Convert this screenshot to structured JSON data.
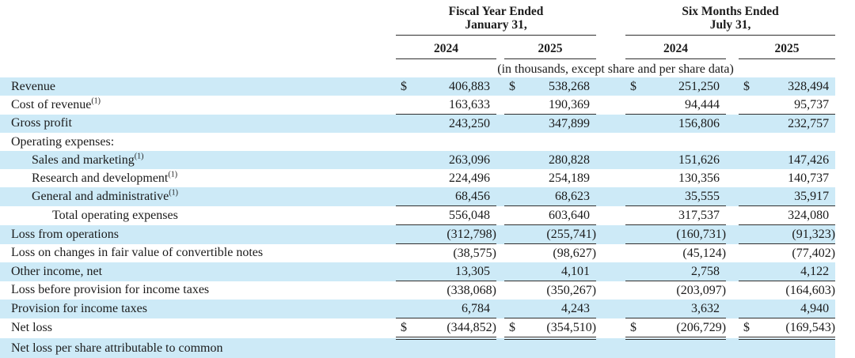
{
  "colors": {
    "stripe": "#cdeaf7",
    "text": "#1b1b1b",
    "rule": "#2f2f2f"
  },
  "currency_symbol": "$",
  "table": {
    "unit_note": "(in thousands, except share and per share data)",
    "column_groups": [
      {
        "line1": "Fiscal Year Ended",
        "line2": "January 31,",
        "years": [
          "2024",
          "2025"
        ]
      },
      {
        "line1": "Six Months Ended",
        "line2": "July 31,",
        "years": [
          "2024",
          "2025"
        ]
      }
    ],
    "rows": [
      {
        "label": "Revenue",
        "sup": "",
        "indent": 0,
        "dollar": true,
        "shaded": true,
        "rule": "none",
        "values": [
          "406,883",
          "538,268",
          "251,250",
          "328,494"
        ]
      },
      {
        "label": "Cost of revenue",
        "sup": "(1)",
        "indent": 0,
        "dollar": false,
        "shaded": false,
        "rule": "single",
        "values": [
          "163,633",
          "190,369",
          "94,444",
          "95,737"
        ]
      },
      {
        "label": "Gross profit",
        "sup": "",
        "indent": 0,
        "dollar": false,
        "shaded": true,
        "rule": "none",
        "values": [
          "243,250",
          "347,899",
          "156,806",
          "232,757"
        ]
      },
      {
        "label": "Operating expenses:",
        "sup": "",
        "indent": 0,
        "dollar": false,
        "shaded": false,
        "rule": "none",
        "values": [
          "",
          "",
          "",
          ""
        ]
      },
      {
        "label": "Sales and marketing",
        "sup": "(1)",
        "indent": 1,
        "dollar": false,
        "shaded": true,
        "rule": "none",
        "values": [
          "263,096",
          "280,828",
          "151,626",
          "147,426"
        ]
      },
      {
        "label": "Research and development",
        "sup": "(1)",
        "indent": 1,
        "dollar": false,
        "shaded": false,
        "rule": "none",
        "values": [
          "224,496",
          "254,189",
          "130,356",
          "140,737"
        ]
      },
      {
        "label": "General and administrative",
        "sup": "(1)",
        "indent": 1,
        "dollar": false,
        "shaded": true,
        "rule": "single",
        "values": [
          "68,456",
          "68,623",
          "35,555",
          "35,917"
        ]
      },
      {
        "label": "Total operating expenses",
        "sup": "",
        "indent": 2,
        "dollar": false,
        "shaded": false,
        "rule": "single",
        "values": [
          "556,048",
          "603,640",
          "317,537",
          "324,080"
        ]
      },
      {
        "label": "Loss from operations",
        "sup": "",
        "indent": 0,
        "dollar": false,
        "shaded": true,
        "rule": "single",
        "values": [
          "(312,798)",
          "(255,741)",
          "(160,731)",
          "(91,323)"
        ]
      },
      {
        "label": "Loss on changes in fair value of convertible notes",
        "sup": "",
        "indent": 0,
        "dollar": false,
        "shaded": false,
        "rule": "none",
        "values": [
          "(38,575)",
          "(98,627)",
          "(45,124)",
          "(77,402)"
        ]
      },
      {
        "label": "Other income, net",
        "sup": "",
        "indent": 0,
        "dollar": false,
        "shaded": true,
        "rule": "single",
        "values": [
          "13,305",
          "4,101",
          "2,758",
          "4,122"
        ]
      },
      {
        "label": "Loss before provision for income taxes",
        "sup": "",
        "indent": 0,
        "dollar": false,
        "shaded": false,
        "rule": "none",
        "values": [
          "(338,068)",
          "(350,267)",
          "(203,097)",
          "(164,603)"
        ]
      },
      {
        "label": "Provision for income taxes",
        "sup": "",
        "indent": 0,
        "dollar": false,
        "shaded": true,
        "rule": "single",
        "values": [
          "6,784",
          "4,243",
          "3,632",
          "4,940"
        ]
      },
      {
        "label": "Net loss",
        "sup": "",
        "indent": 0,
        "dollar": true,
        "shaded": false,
        "rule": "double",
        "values": [
          "(344,852)",
          "(354,510)",
          "(206,729)",
          "(169,543)"
        ]
      },
      {
        "label": "Net loss per share attributable to common",
        "sup": "",
        "indent": 0,
        "dollar": false,
        "shaded": true,
        "rule": "none",
        "values": [
          "",
          "",
          "",
          ""
        ]
      }
    ]
  }
}
